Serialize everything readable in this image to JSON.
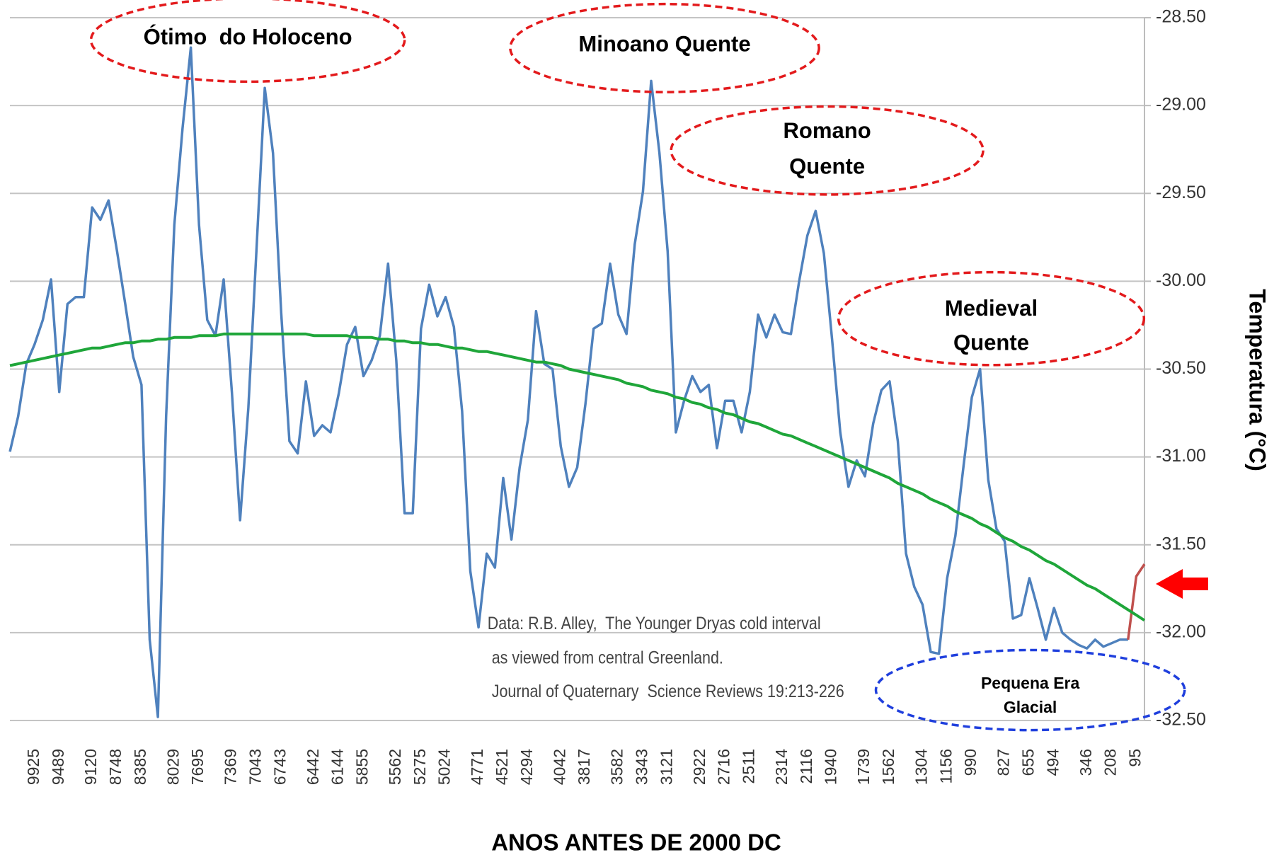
{
  "chart_data": {
    "type": "line",
    "xlabel": "ANOS ANTES DE 2000 DC",
    "ylabel": "Temperatura (°C)",
    "categories": [
      null,
      null,
      null,
      "9925",
      null,
      null,
      "9489",
      null,
      null,
      null,
      "9120",
      null,
      null,
      "8748",
      null,
      null,
      "8385",
      null,
      null,
      null,
      "8029",
      null,
      null,
      "7695",
      null,
      null,
      null,
      "7369",
      null,
      null,
      "7043",
      null,
      null,
      "6743",
      null,
      null,
      null,
      "6442",
      null,
      null,
      "6144",
      null,
      null,
      "5855",
      null,
      null,
      null,
      "5562",
      null,
      null,
      "5275",
      null,
      null,
      "5024",
      null,
      null,
      null,
      "4771",
      null,
      null,
      "4521",
      null,
      null,
      "4294",
      null,
      null,
      null,
      "4042",
      null,
      null,
      "3817",
      null,
      null,
      null,
      "3582",
      null,
      null,
      "3343",
      null,
      null,
      "3121",
      null,
      null,
      null,
      "2922",
      null,
      null,
      "2716",
      null,
      null,
      "2511",
      null,
      null,
      null,
      "2314",
      null,
      null,
      "2116",
      null,
      null,
      "1940",
      null,
      null,
      null,
      "1739",
      null,
      null,
      "1562",
      null,
      null,
      null,
      "1304",
      null,
      null,
      "1156",
      null,
      null,
      "990",
      null,
      null,
      null,
      "827",
      null,
      null,
      "655",
      null,
      null,
      "494",
      null,
      null,
      null,
      "346",
      null,
      null,
      "208",
      null,
      null,
      "95",
      null
    ],
    "series": [
      {
        "color": "#4f81bd",
        "values": [
          -30.97,
          -30.77,
          -30.47,
          -30.36,
          -30.22,
          -29.99,
          -30.63,
          -30.13,
          -30.09,
          -30.09,
          -29.58,
          -29.65,
          -29.54,
          -29.82,
          -30.12,
          -30.43,
          -30.59,
          -32.04,
          -32.48,
          -30.77,
          -29.68,
          -29.13,
          -28.67,
          -29.68,
          -30.22,
          -30.31,
          -29.99,
          -30.63,
          -31.36,
          -30.72,
          -29.81,
          -28.9,
          -29.27,
          -30.18,
          -30.91,
          -30.98,
          -30.57,
          -30.88,
          -30.82,
          -30.86,
          -30.64,
          -30.36,
          -30.26,
          -30.54,
          -30.45,
          -30.31,
          -29.9,
          -30.45,
          -31.32,
          -31.32,
          -30.27,
          -30.02,
          -30.2,
          -30.09,
          -30.26,
          -30.74,
          -31.65,
          -31.97,
          -31.55,
          -31.63,
          -31.12,
          -31.47,
          -31.06,
          -30.79,
          -30.17,
          -30.47,
          -30.5,
          -30.94,
          -31.17,
          -31.06,
          -30.7,
          -30.27,
          -30.24,
          -29.9,
          -30.19,
          -30.3,
          -29.79,
          -29.49,
          -28.86,
          -29.27,
          -29.83,
          -30.86,
          -30.68,
          -30.54,
          -30.63,
          -30.59,
          -30.95,
          -30.68,
          -30.68,
          -30.86,
          -30.63,
          -30.19,
          -30.32,
          -30.19,
          -30.29,
          -30.3,
          -30.0,
          -29.74,
          -29.6,
          -29.84,
          -30.33,
          -30.86,
          -31.17,
          -31.02,
          -31.11,
          -30.81,
          -30.62,
          -30.57,
          -30.91,
          -31.55,
          -31.74,
          -31.84,
          -32.11,
          -32.12,
          -31.69,
          -31.45,
          -31.05,
          -30.66,
          -30.5,
          -31.13,
          -31.41,
          -31.48,
          -31.92,
          -31.9,
          -31.69,
          -31.86,
          -32.04,
          -31.86,
          -32.0,
          -32.04,
          -32.07,
          -32.09,
          -32.04,
          -32.08,
          -32.06,
          -32.04,
          -32.04,
          null,
          null
        ]
      },
      {
        "color": "#c0504d",
        "values": [
          null,
          null,
          null,
          null,
          null,
          null,
          null,
          null,
          null,
          null,
          null,
          null,
          null,
          null,
          null,
          null,
          null,
          null,
          null,
          null,
          null,
          null,
          null,
          null,
          null,
          null,
          null,
          null,
          null,
          null,
          null,
          null,
          null,
          null,
          null,
          null,
          null,
          null,
          null,
          null,
          null,
          null,
          null,
          null,
          null,
          null,
          null,
          null,
          null,
          null,
          null,
          null,
          null,
          null,
          null,
          null,
          null,
          null,
          null,
          null,
          null,
          null,
          null,
          null,
          null,
          null,
          null,
          null,
          null,
          null,
          null,
          null,
          null,
          null,
          null,
          null,
          null,
          null,
          null,
          null,
          null,
          null,
          null,
          null,
          null,
          null,
          null,
          null,
          null,
          null,
          null,
          null,
          null,
          null,
          null,
          null,
          null,
          null,
          null,
          null,
          null,
          null,
          null,
          null,
          null,
          null,
          null,
          null,
          null,
          null,
          null,
          null,
          null,
          null,
          null,
          null,
          null,
          null,
          null,
          null,
          null,
          null,
          null,
          null,
          null,
          null,
          null,
          null,
          null,
          null,
          null,
          null,
          null,
          null,
          null,
          null,
          -32.04,
          -31.68,
          -31.61
        ]
      },
      {
        "color": "#1fa63a",
        "values": [
          -30.48,
          -30.47,
          -30.46,
          -30.45,
          -30.44,
          -30.43,
          -30.42,
          -30.41,
          -30.4,
          -30.39,
          -30.38,
          -30.38,
          -30.37,
          -30.36,
          -30.35,
          -30.35,
          -30.34,
          -30.34,
          -30.33,
          -30.33,
          -30.32,
          -30.32,
          -30.32,
          -30.31,
          -30.31,
          -30.31,
          -30.3,
          -30.3,
          -30.3,
          -30.3,
          -30.3,
          -30.3,
          -30.3,
          -30.3,
          -30.3,
          -30.3,
          -30.3,
          -30.31,
          -30.31,
          -30.31,
          -30.31,
          -30.31,
          -30.32,
          -30.32,
          -30.32,
          -30.33,
          -30.33,
          -30.34,
          -30.34,
          -30.35,
          -30.35,
          -30.36,
          -30.36,
          -30.37,
          -30.38,
          -30.38,
          -30.39,
          -30.4,
          -30.4,
          -30.41,
          -30.42,
          -30.43,
          -30.44,
          -30.45,
          -30.46,
          -30.46,
          -30.47,
          -30.48,
          -30.5,
          -30.51,
          -30.52,
          -30.53,
          -30.54,
          -30.55,
          -30.56,
          -30.58,
          -30.59,
          -30.6,
          -30.62,
          -30.63,
          -30.64,
          -30.66,
          -30.67,
          -30.69,
          -30.7,
          -30.72,
          -30.73,
          -30.75,
          -30.76,
          -30.78,
          -30.8,
          -30.81,
          -30.83,
          -30.85,
          -30.87,
          -30.88,
          -30.9,
          -30.92,
          -30.94,
          -30.96,
          -30.98,
          -31.0,
          -31.02,
          -31.04,
          -31.06,
          -31.08,
          -31.1,
          -31.12,
          -31.15,
          -31.17,
          -31.19,
          -31.21,
          -31.24,
          -31.26,
          -31.28,
          -31.31,
          -31.33,
          -31.35,
          -31.38,
          -31.4,
          -31.43,
          -31.46,
          -31.48,
          -31.51,
          -31.53,
          -31.56,
          -31.59,
          -31.61,
          -31.64,
          -31.67,
          -31.7,
          -31.73,
          -31.75,
          -31.78,
          -31.81,
          -31.84,
          -31.87,
          -31.9,
          -31.93
        ]
      }
    ],
    "ylim": [
      -32.5,
      -28.5
    ],
    "yticks": [
      {
        "value": -28.5,
        "label": "-28.50"
      },
      {
        "value": -29,
        "label": "-29.00"
      },
      {
        "value": -29.5,
        "label": "-29.50"
      },
      {
        "value": -30,
        "label": "-30.00"
      },
      {
        "value": -30.5,
        "label": "-30.50"
      },
      {
        "value": -31,
        "label": "-31.00"
      },
      {
        "value": -31.5,
        "label": "-31.50"
      },
      {
        "value": -32,
        "label": "-32.00"
      },
      {
        "value": -32.5,
        "label": "-32.50"
      }
    ],
    "grid": true,
    "y_axis_side": "right",
    "annotations": [
      {
        "lines": [
          "Ótimo  do Holoceno"
        ],
        "color": "#e31a1c"
      },
      {
        "lines": [
          "Minoano Quente"
        ],
        "color": "#e31a1c"
      },
      {
        "lines": [
          "Romano",
          "Quente"
        ],
        "color": "#e31a1c"
      },
      {
        "lines": [
          "Medieval",
          "Quente"
        ],
        "color": "#e31a1c"
      },
      {
        "lines": [
          "Pequena Era",
          "Glacial"
        ],
        "color": "#1f3fdd"
      }
    ],
    "source_note": [
      "Data: R.B. Alley,  The Younger Dryas cold interval",
      " as viewed from central Greenland.",
      " Journal of Quaternary  Science Reviews 19:213-226"
    ]
  }
}
